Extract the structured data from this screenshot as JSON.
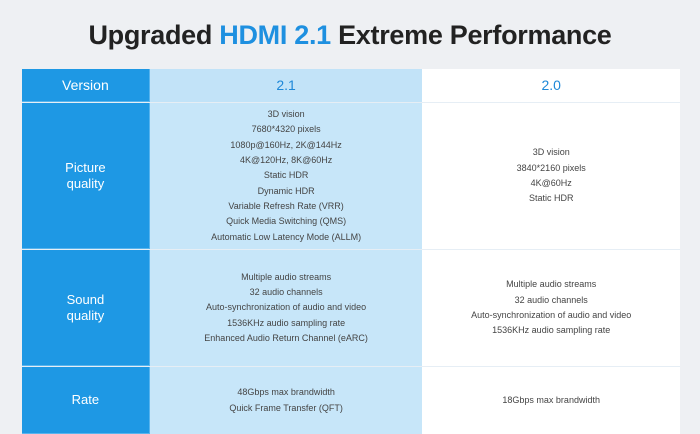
{
  "title": {
    "prefix": "Upgraded ",
    "accent": "HDMI 2.1",
    "suffix": " Extreme Performance"
  },
  "table": {
    "header": {
      "label": "Version",
      "col_21": "2.1",
      "col_20": "2.0"
    },
    "rows": [
      {
        "label_lines": [
          "Picture",
          "quality"
        ],
        "col_21": [
          "3D vision",
          "7680*4320 pixels",
          "1080p@160Hz, 2K@144Hz",
          "4K@120Hz, 8K@60Hz",
          "Static HDR",
          "Dynamic HDR",
          "Variable Refresh Rate (VRR)",
          "Quick Media Switching (QMS)",
          "Automatic Low Latency Mode (ALLM)"
        ],
        "col_20": [
          "3D vision",
          "3840*2160 pixels",
          "4K@60Hz",
          "Static HDR"
        ]
      },
      {
        "label_lines": [
          "Sound",
          "quality"
        ],
        "col_21": [
          "Multiple audio streams",
          "32 audio channels",
          "Auto-synchronization of audio and video",
          "1536KHz audio sampling rate",
          "Enhanced Audio Return Channel (eARC)"
        ],
        "col_20": [
          "Multiple audio streams",
          "32 audio channels",
          "Auto-synchronization of audio and video",
          "1536KHz audio sampling rate"
        ]
      },
      {
        "label_lines": [
          "Rate"
        ],
        "col_21": [
          "48Gbps max brandwidth",
          "Quick Frame Transfer (QFT)"
        ],
        "col_20": [
          "18Gbps  max brandwidth"
        ]
      }
    ]
  },
  "colors": {
    "accent": "#1e90e0",
    "label_bg": "#1e98e4",
    "col21_bg": "#c7e6f9",
    "col20_bg": "#ffffff",
    "page_bg": "#eef0f3"
  }
}
